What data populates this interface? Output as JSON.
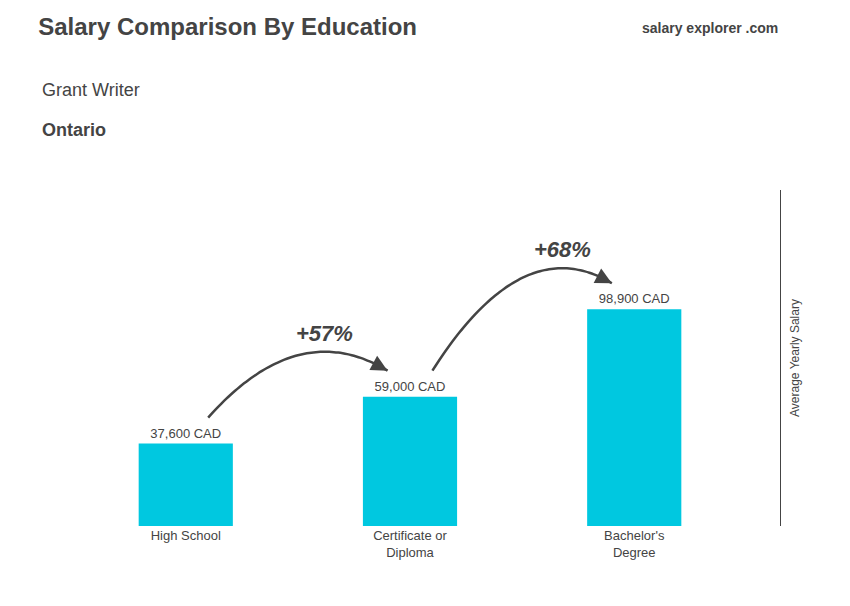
{
  "chart_data": {
    "type": "bar",
    "title": "Salary Comparison By Education",
    "subtitle": [
      "Grant Writer",
      "Ontario"
    ],
    "watermark": [
      "salary",
      "explorer",
      ".com"
    ],
    "ylabel": "Average Yearly Salary",
    "categories": [
      "High School",
      "Certificate or\nDiploma",
      "Bachelor's\nDegree"
    ],
    "values": [
      37600,
      59000,
      98900
    ],
    "value_labels": [
      "37,600 CAD",
      "59,000 CAD",
      "98,900 CAD"
    ],
    "data_labels": true,
    "color": "#00c8e0",
    "annotations": [
      "+57%",
      "+68%"
    ],
    "ylim": [
      0,
      153295
    ],
    "yticks": [],
    "tick_labels": "x",
    "grid": false
  }
}
